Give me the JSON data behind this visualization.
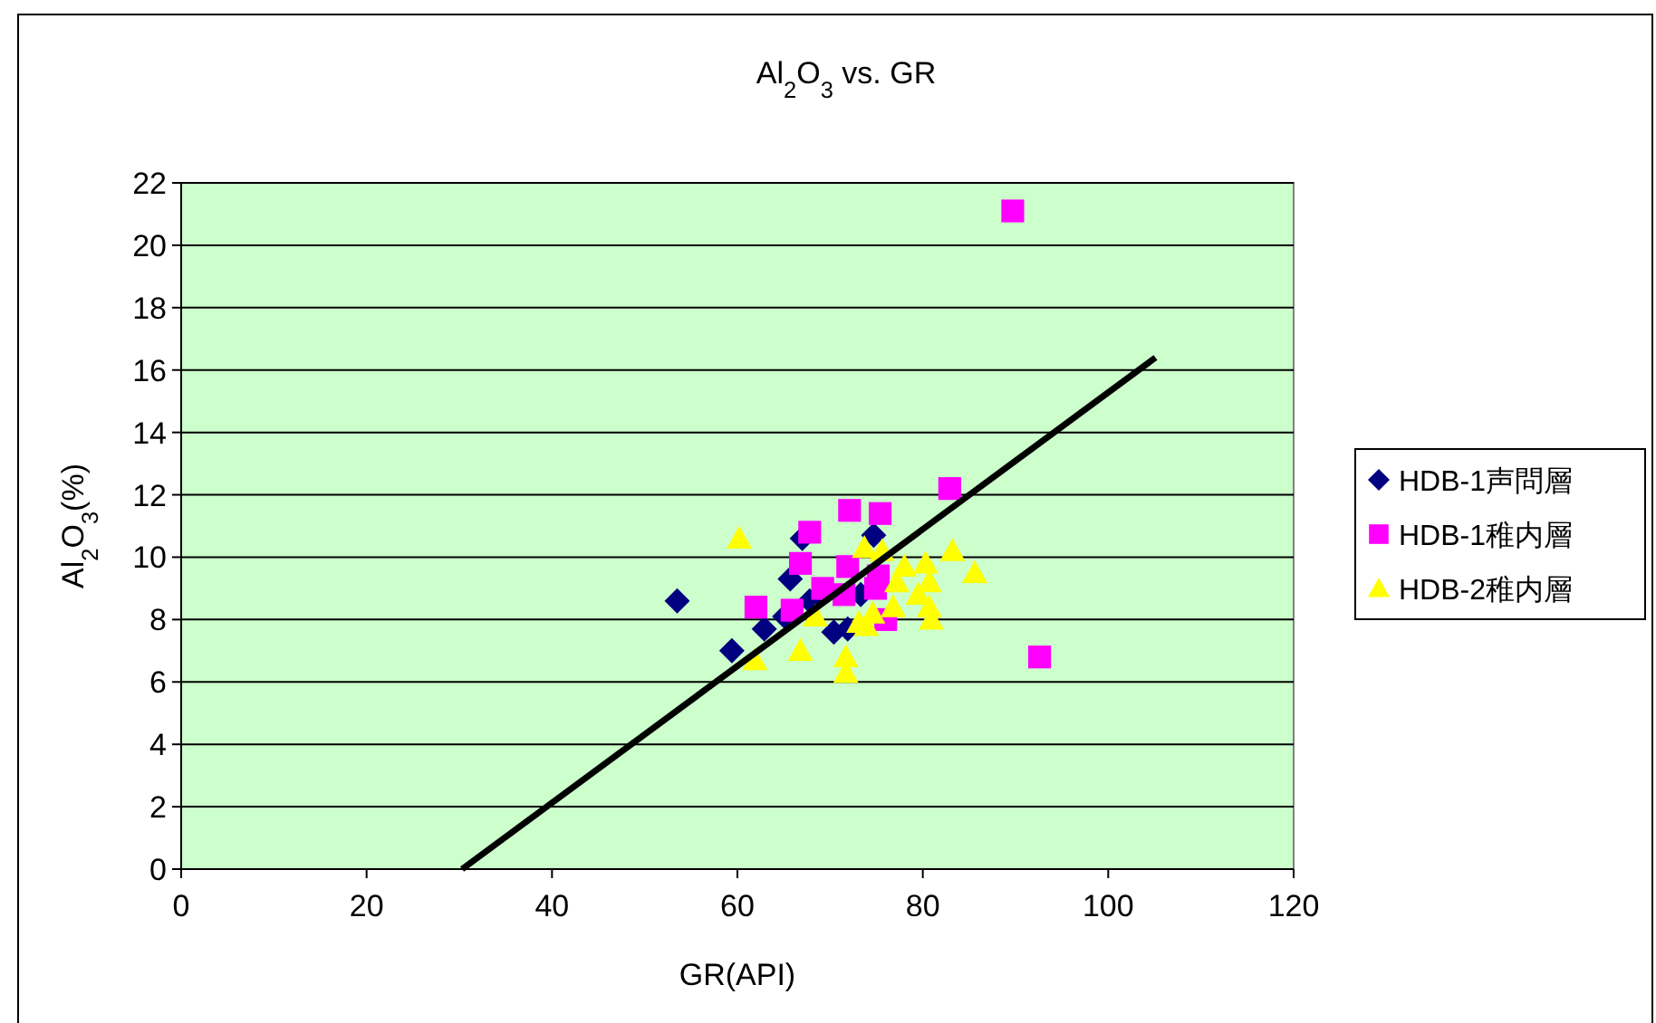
{
  "chart_data": {
    "type": "scatter",
    "title": "Al$_{2}$O$_{3}$ vs. GR",
    "xlabel": "GR(API)",
    "ylabel": "Al$_{2}$O$_{3}$(%)",
    "xlim": [
      0,
      120
    ],
    "xticks": [
      0,
      20,
      40,
      60,
      80,
      100,
      120
    ],
    "ylim": [
      0,
      22
    ],
    "yticks": [
      0,
      2,
      4,
      6,
      8,
      10,
      12,
      14,
      16,
      18,
      20,
      22
    ],
    "grid": "y",
    "legend": "right",
    "series": [
      {
        "name": "HDB-1声問層",
        "color": "#000080",
        "marker": "diamond",
        "x": [
          53.5,
          59.4,
          62.9,
          65.7,
          65.1,
          67.0,
          67.8,
          70.4,
          71.9,
          74.7,
          73.3
        ],
        "values": [
          8.6,
          7.0,
          7.7,
          9.3,
          8.1,
          10.6,
          8.6,
          7.6,
          7.7,
          10.7,
          8.8
        ]
      },
      {
        "name": "HDB-1稚内層",
        "color": "#ff00ff",
        "marker": "square",
        "x": [
          62.0,
          65.9,
          66.8,
          67.8,
          69.2,
          72.1,
          71.9,
          71.5,
          75.4,
          75.2,
          74.9,
          76.0,
          82.9,
          89.7,
          92.6
        ],
        "values": [
          8.4,
          8.3,
          9.8,
          10.8,
          9.0,
          11.5,
          9.7,
          8.8,
          11.4,
          9.4,
          9.0,
          8.0,
          12.2,
          21.1,
          6.8
        ]
      },
      {
        "name": "HDB-2稚内層",
        "color": "#ffff00",
        "marker": "triangle",
        "x": [
          60.2,
          61.9,
          66.8,
          68.4,
          71.7,
          71.7,
          73.1,
          73.7,
          73.9,
          74.6,
          75.6,
          76.8,
          77.2,
          78.0,
          79.5,
          80.3,
          80.7,
          80.7,
          80.9,
          83.2,
          85.6
        ],
        "values": [
          10.6,
          6.7,
          7.0,
          8.1,
          6.8,
          6.3,
          7.9,
          10.3,
          7.8,
          8.2,
          10.2,
          8.4,
          9.2,
          9.7,
          8.8,
          9.8,
          9.2,
          8.4,
          8.0,
          10.2,
          9.5
        ]
      },
      {
        "type": "line",
        "color": "#000000",
        "x": [
          30.3,
          105.1
        ],
        "values": [
          0,
          16.4
        ]
      }
    ]
  }
}
